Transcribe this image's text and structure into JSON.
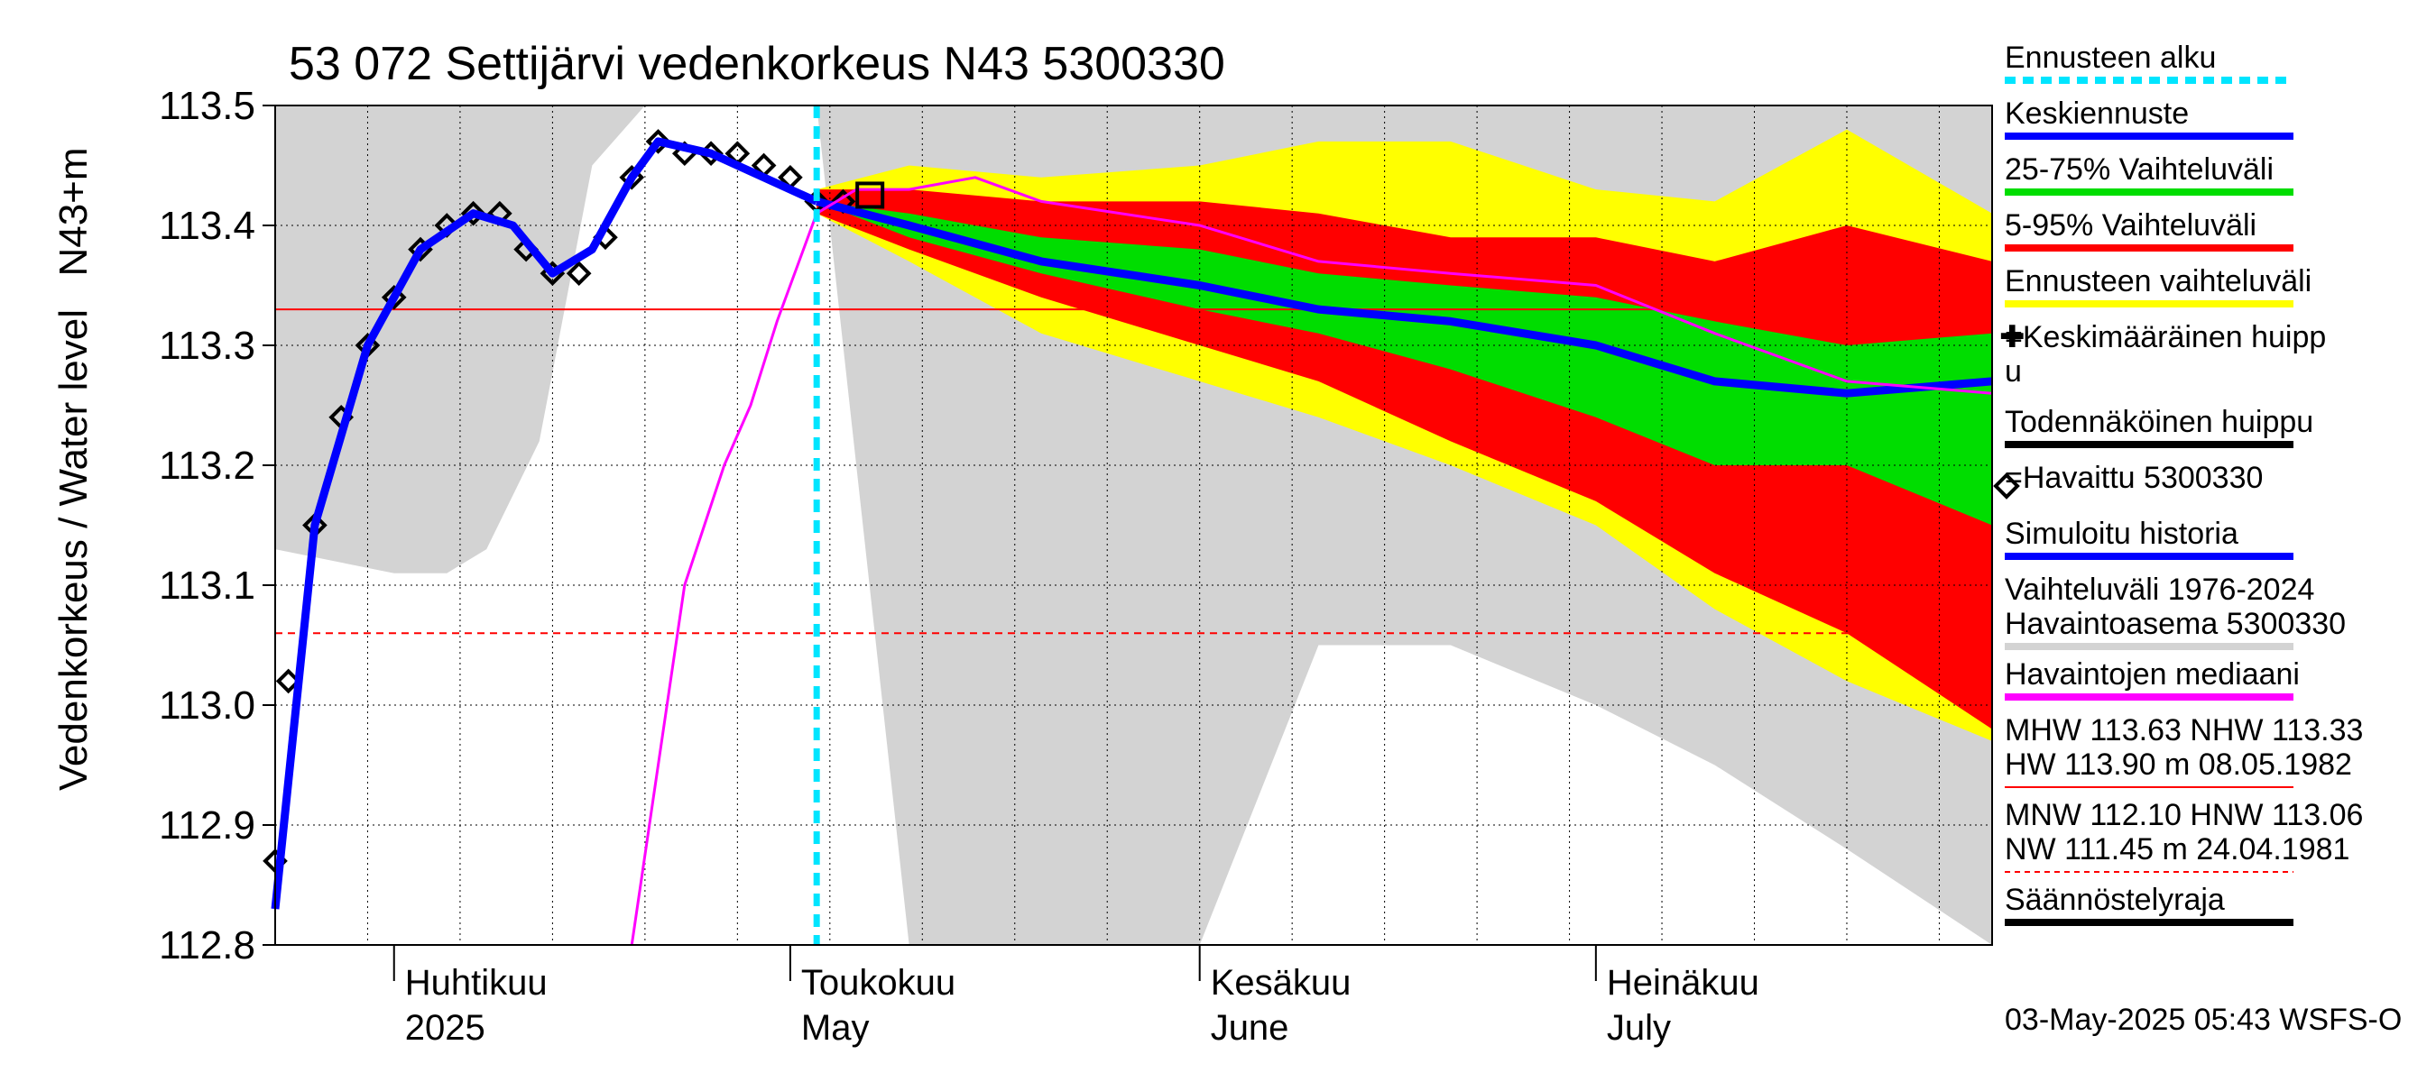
{
  "chart_data": {
    "type": "line",
    "title": "53 072 Settijärvi vedenkorkeus N43 5300330",
    "ylabel": "Vedenkorkeus / Water level",
    "yunit": "N43+m",
    "ylim": [
      112.8,
      113.5
    ],
    "yticks": [
      "112.8",
      "112.9",
      "113.0",
      "113.1",
      "113.2",
      "113.3",
      "113.4",
      "113.5"
    ],
    "xlim": [
      "2025-03-23",
      "2025-07-31"
    ],
    "months": [
      {
        "fi": "Huhtikuu",
        "en": "2025",
        "date": "2025-04-01"
      },
      {
        "fi": "Toukokuu",
        "en": "May",
        "date": "2025-05-01"
      },
      {
        "fi": "Kesäkuu",
        "en": "June",
        "date": "2025-06-01"
      },
      {
        "fi": "Heinäkuu",
        "en": "July",
        "date": "2025-07-01"
      }
    ],
    "forecast_start": "2025-05-03",
    "reference_lines": [
      {
        "name": "NHW",
        "value": 113.33,
        "color": "#ff0000",
        "style": "solid"
      },
      {
        "name": "HNW",
        "value": 113.06,
        "color": "#ff0000",
        "style": "dashed"
      }
    ],
    "history_range": {
      "name": "Vaihteluväli 1976-2024 Havaintoasema 5300330",
      "color": "#d3d3d3",
      "x": [
        "2025-03-23",
        "2025-04-01",
        "2025-04-05",
        "2025-04-08",
        "2025-04-12",
        "2025-04-16",
        "2025-04-20",
        "2025-04-24",
        "2025-04-28",
        "2025-05-03",
        "2025-05-10",
        "2025-05-20",
        "2025-06-01",
        "2025-06-10",
        "2025-06-20",
        "2025-07-01",
        "2025-07-10",
        "2025-07-20",
        "2025-07-31"
      ],
      "upper": [
        113.5,
        113.5,
        113.5,
        113.5,
        113.5,
        113.5,
        113.5,
        113.5,
        113.5,
        113.5,
        113.5,
        113.5,
        113.5,
        113.5,
        113.5,
        113.5,
        113.5,
        113.5,
        113.5
      ],
      "lower": [
        113.13,
        113.11,
        113.11,
        113.13,
        113.22,
        113.45,
        113.5,
        113.5,
        113.5,
        113.5,
        112.8,
        112.8,
        112.8,
        113.05,
        113.05,
        113.0,
        112.95,
        112.88,
        112.8
      ]
    },
    "series": [
      {
        "name": "Havaittu 5300330",
        "color": "#000000",
        "marker": "diamond",
        "x": [
          "2025-03-23",
          "2025-03-24",
          "2025-03-26",
          "2025-03-28",
          "2025-03-30",
          "2025-04-01",
          "2025-04-03",
          "2025-04-05",
          "2025-04-07",
          "2025-04-09",
          "2025-04-11",
          "2025-04-13",
          "2025-04-15",
          "2025-04-17",
          "2025-04-19",
          "2025-04-21",
          "2025-04-23",
          "2025-04-25",
          "2025-04-27",
          "2025-04-29",
          "2025-05-01",
          "2025-05-03",
          "2025-05-05"
        ],
        "y": [
          112.87,
          113.02,
          113.15,
          113.24,
          113.3,
          113.34,
          113.38,
          113.4,
          113.41,
          113.41,
          113.38,
          113.36,
          113.36,
          113.39,
          113.44,
          113.47,
          113.46,
          113.46,
          113.46,
          113.45,
          113.44,
          113.42,
          113.42
        ]
      },
      {
        "name": "Simuloitu historia",
        "color": "#0000ff",
        "x": [
          "2025-03-23",
          "2025-03-26",
          "2025-03-30",
          "2025-04-03",
          "2025-04-07",
          "2025-04-10",
          "2025-04-13",
          "2025-04-16",
          "2025-04-19",
          "2025-04-21",
          "2025-04-25",
          "2025-04-29",
          "2025-05-03"
        ],
        "y": [
          112.83,
          113.15,
          113.3,
          113.38,
          113.41,
          113.4,
          113.36,
          113.38,
          113.44,
          113.47,
          113.46,
          113.44,
          113.42
        ]
      },
      {
        "name": "Keskiennuste",
        "color": "#0000ff",
        "x": [
          "2025-05-03",
          "2025-05-10",
          "2025-05-20",
          "2025-06-01",
          "2025-06-10",
          "2025-06-20",
          "2025-07-01",
          "2025-07-10",
          "2025-07-20",
          "2025-07-31"
        ],
        "y": [
          113.42,
          113.4,
          113.37,
          113.35,
          113.33,
          113.32,
          113.3,
          113.27,
          113.26,
          113.27
        ]
      },
      {
        "name": "Havaintojen mediaani",
        "color": "#ff00ff",
        "x": [
          "2025-04-19",
          "2025-04-23",
          "2025-04-26",
          "2025-04-28",
          "2025-04-30",
          "2025-05-03",
          "2025-05-06",
          "2025-05-10",
          "2025-05-15",
          "2025-05-20",
          "2025-06-01",
          "2025-06-10",
          "2025-06-20",
          "2025-07-01",
          "2025-07-10",
          "2025-07-20",
          "2025-07-31"
        ],
        "y": [
          112.8,
          113.1,
          113.2,
          113.25,
          113.32,
          113.41,
          113.43,
          113.43,
          113.44,
          113.42,
          113.4,
          113.37,
          113.36,
          113.35,
          113.31,
          113.27,
          113.26
        ]
      }
    ],
    "bands": [
      {
        "name": "Ennusteen vaihteluväli",
        "color": "#ffff00",
        "x": [
          "2025-05-03",
          "2025-05-10",
          "2025-05-20",
          "2025-06-01",
          "2025-06-10",
          "2025-06-20",
          "2025-07-01",
          "2025-07-10",
          "2025-07-20",
          "2025-07-31"
        ],
        "upper": [
          113.43,
          113.45,
          113.44,
          113.45,
          113.47,
          113.47,
          113.43,
          113.42,
          113.48,
          113.41
        ],
        "lower": [
          113.41,
          113.37,
          113.31,
          113.27,
          113.24,
          113.2,
          113.15,
          113.08,
          113.02,
          112.97
        ]
      },
      {
        "name": "5-95% Vaihteluväli",
        "color": "#ff0000",
        "x": [
          "2025-05-03",
          "2025-05-10",
          "2025-05-20",
          "2025-06-01",
          "2025-06-10",
          "2025-06-20",
          "2025-07-01",
          "2025-07-10",
          "2025-07-20",
          "2025-07-31"
        ],
        "upper": [
          113.43,
          113.43,
          113.42,
          113.42,
          113.41,
          113.39,
          113.39,
          113.37,
          113.4,
          113.37
        ],
        "lower": [
          113.41,
          113.38,
          113.34,
          113.3,
          113.27,
          113.22,
          113.17,
          113.11,
          113.06,
          112.98
        ]
      },
      {
        "name": "25-75% Vaihteluväli",
        "color": "#00dd00",
        "x": [
          "2025-05-03",
          "2025-05-10",
          "2025-05-20",
          "2025-06-01",
          "2025-06-10",
          "2025-06-20",
          "2025-07-01",
          "2025-07-10",
          "2025-07-20",
          "2025-07-31"
        ],
        "upper": [
          113.42,
          113.41,
          113.39,
          113.38,
          113.36,
          113.35,
          113.34,
          113.32,
          113.3,
          113.31
        ],
        "lower": [
          113.42,
          113.39,
          113.36,
          113.33,
          113.31,
          113.28,
          113.24,
          113.2,
          113.2,
          113.15
        ]
      }
    ],
    "legend": [
      {
        "label": "Ennusteen alku",
        "color": "#00e5ff",
        "style": "dashed"
      },
      {
        "label": "Keskiennuste",
        "color": "#0000ff",
        "style": "line"
      },
      {
        "label": "25-75% Vaihteluväli",
        "color": "#00dd00",
        "style": "line"
      },
      {
        "label": "5-95% Vaihteluväli",
        "color": "#ff0000",
        "style": "line"
      },
      {
        "label": "Ennusteen vaihteluväli",
        "color": "#ffff00",
        "style": "line"
      },
      {
        "label": "=Keskimääräinen huipp",
        "label2": "u",
        "color": "#000000",
        "style": "cross"
      },
      {
        "label": "Todennäköinen huippu",
        "color": "#000000",
        "style": "line"
      },
      {
        "label": "=Havaittu 5300330",
        "color": "#000000",
        "style": "diamond"
      },
      {
        "label": "Simuloitu historia",
        "color": "#0000ff",
        "style": "line"
      },
      {
        "label": "Vaihteluväli 1976-2024",
        "label2": " Havaintoasema 5300330",
        "color": "#d3d3d3",
        "style": "line"
      },
      {
        "label": "Havaintojen mediaani",
        "color": "#ff00ff",
        "style": "line"
      },
      {
        "label": "MHW 113.63 NHW 113.33",
        "label2": "HW 113.90 m 08.05.1982",
        "color": "#ff0000",
        "style": "thin"
      },
      {
        "label": "MNW 112.10 HNW 113.06",
        "label2": "NW 111.45 m 24.04.1981",
        "color": "#ff0000",
        "style": "thin-dashed"
      },
      {
        "label": "Säännöstelyraja",
        "color": "#000000",
        "style": "line"
      }
    ],
    "footer": "03-May-2025 05:43 WSFS-O"
  }
}
